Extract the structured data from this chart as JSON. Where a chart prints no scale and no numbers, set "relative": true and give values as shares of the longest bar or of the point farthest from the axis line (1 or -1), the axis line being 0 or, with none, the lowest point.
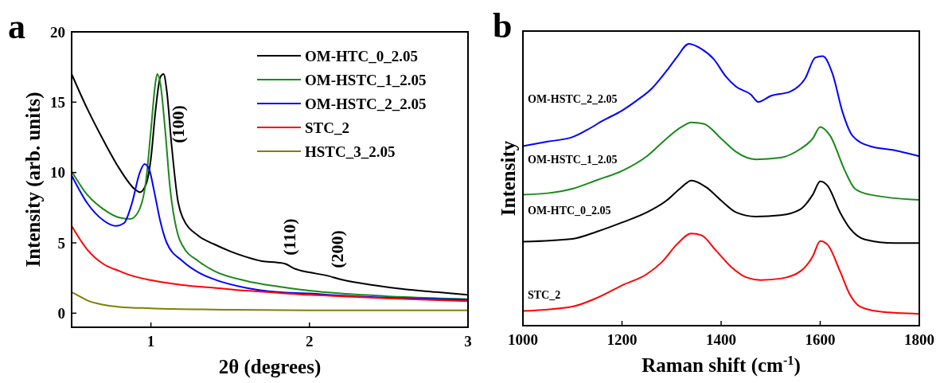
{
  "chart_data": [
    {
      "type": "line",
      "title": "a",
      "xlabel": "2θ (degrees)",
      "ylabel": "Intensity (arb. units)",
      "xlim": [
        0.5,
        3
      ],
      "xticks": [
        1,
        2,
        3
      ],
      "ylim": [
        -1,
        20
      ],
      "yticks": [
        0,
        5,
        10,
        15,
        20
      ],
      "legend": "top right",
      "grid": false,
      "annotations": [
        "(100)",
        "(110)",
        "(200)"
      ],
      "series": [
        {
          "name": "OM-HTC_0_2.05",
          "color": "#000000",
          "x": [
            0.5,
            0.6,
            0.7,
            0.8,
            0.9,
            0.93,
            0.97,
            1.0,
            1.03,
            1.06,
            1.08,
            1.1,
            1.13,
            1.17,
            1.2,
            1.3,
            1.4,
            1.5,
            1.6,
            1.7,
            1.8,
            1.85,
            1.9,
            2.0,
            2.1,
            2.2,
            2.4,
            2.6,
            2.8,
            3.0
          ],
          "values": [
            17,
            14.5,
            12.3,
            10.3,
            8.8,
            8.6,
            9.2,
            11,
            14.5,
            16.8,
            17,
            15.8,
            12,
            8,
            6.8,
            5.5,
            4.9,
            4.4,
            4.0,
            3.7,
            3.6,
            3.5,
            3.2,
            2.9,
            2.7,
            2.4,
            2.0,
            1.7,
            1.5,
            1.3
          ]
        },
        {
          "name": "OM-HSTC_1_2.05",
          "color": "#1a8a1a",
          "x": [
            0.5,
            0.6,
            0.7,
            0.8,
            0.87,
            0.92,
            0.97,
            1.0,
            1.03,
            1.04,
            1.06,
            1.09,
            1.12,
            1.17,
            1.2,
            1.3,
            1.4,
            1.6,
            1.8,
            2.0,
            2.2,
            2.5,
            3.0
          ],
          "values": [
            10.1,
            8.4,
            7.4,
            6.8,
            6.7,
            7.2,
            9.5,
            13,
            16.5,
            17,
            16.3,
            13,
            9,
            5.6,
            4.8,
            3.7,
            3.0,
            2.3,
            1.9,
            1.6,
            1.4,
            1.2,
            1.0
          ]
        },
        {
          "name": "OM-HSTC_2_2.05",
          "color": "#0000ff",
          "x": [
            0.5,
            0.6,
            0.7,
            0.78,
            0.83,
            0.88,
            0.93,
            0.96,
            0.99,
            1.02,
            1.06,
            1.1,
            1.2,
            1.3,
            1.4,
            1.6,
            1.8,
            2.0,
            2.2,
            2.5,
            3.0
          ],
          "values": [
            9.8,
            7.8,
            6.6,
            6.2,
            6.4,
            7.8,
            10,
            10.6,
            10.2,
            8.7,
            6.5,
            5.0,
            3.7,
            2.9,
            2.4,
            1.8,
            1.5,
            1.4,
            1.25,
            1.1,
            0.95
          ]
        },
        {
          "name": "STC_2",
          "color": "#ff0000",
          "x": [
            0.5,
            0.6,
            0.7,
            0.8,
            0.9,
            1.0,
            1.2,
            1.4,
            1.6,
            1.8,
            2.0,
            2.2,
            2.5,
            3.0
          ],
          "values": [
            6.2,
            4.5,
            3.5,
            3.0,
            2.6,
            2.35,
            2.0,
            1.8,
            1.6,
            1.45,
            1.3,
            1.2,
            1.05,
            0.85
          ]
        },
        {
          "name": "HSTC_3_2.05",
          "color": "#808000",
          "x": [
            0.5,
            0.55,
            0.6,
            0.7,
            0.8,
            1.0,
            1.5,
            2.0,
            3.0
          ],
          "values": [
            1.5,
            1.2,
            0.9,
            0.6,
            0.45,
            0.35,
            0.25,
            0.2,
            0.2
          ]
        }
      ]
    },
    {
      "type": "line",
      "title": "b",
      "xlabel": "Raman shift (cm$^{-1}$)",
      "ylabel": "Intensity",
      "relative": true,
      "xlim": [
        1000,
        1800
      ],
      "xticks": [
        1000,
        1200,
        1400,
        1600,
        1800
      ],
      "legend": false,
      "grid": false,
      "tick_labels": "x",
      "series": [
        {
          "name": "STC_2",
          "color": "#ff0000",
          "x": [
            1000,
            1100,
            1150,
            1200,
            1250,
            1280,
            1310,
            1340,
            1360,
            1390,
            1420,
            1450,
            1480,
            1520,
            1560,
            1585,
            1600,
            1615,
            1640,
            1660,
            1680,
            1720,
            1800
          ],
          "values": [
            0.052,
            0.068,
            0.099,
            0.143,
            0.183,
            0.225,
            0.287,
            0.327,
            0.321,
            0.266,
            0.209,
            0.172,
            0.162,
            0.167,
            0.193,
            0.246,
            0.3,
            0.287,
            0.193,
            0.11,
            0.068,
            0.05,
            0.042
          ]
        },
        {
          "name": "OM-HTC_0_2.05",
          "color": "#000000",
          "x": [
            1000,
            1100,
            1150,
            1200,
            1250,
            1290,
            1320,
            1340,
            1370,
            1400,
            1430,
            1470,
            1520,
            1560,
            1585,
            1600,
            1615,
            1640,
            1660,
            1690,
            1750,
            1800
          ],
          "values": [
            0.298,
            0.308,
            0.334,
            0.366,
            0.402,
            0.444,
            0.491,
            0.515,
            0.491,
            0.444,
            0.402,
            0.387,
            0.392,
            0.413,
            0.465,
            0.512,
            0.496,
            0.402,
            0.345,
            0.306,
            0.293,
            0.293
          ]
        },
        {
          "name": "OM-HSTC_1_2.05",
          "color": "#1a8a1a",
          "x": [
            1000,
            1050,
            1100,
            1150,
            1200,
            1250,
            1290,
            1320,
            1340,
            1365,
            1400,
            1430,
            1470,
            1520,
            1560,
            1585,
            1600,
            1620,
            1650,
            1670,
            1700,
            1800
          ],
          "values": [
            0.465,
            0.47,
            0.486,
            0.517,
            0.549,
            0.601,
            0.664,
            0.705,
            0.721,
            0.716,
            0.664,
            0.617,
            0.59,
            0.596,
            0.627,
            0.664,
            0.705,
            0.674,
            0.549,
            0.486,
            0.465,
            0.446
          ]
        },
        {
          "name": "OM-HSTC_2_2.05",
          "color": "#0000ff",
          "x": [
            1000,
            1050,
            1100,
            1130,
            1160,
            1200,
            1230,
            1260,
            1290,
            1310,
            1335,
            1360,
            1385,
            1410,
            1430,
            1460,
            1475,
            1500,
            1540,
            1570,
            1590,
            1605,
            1625,
            1645,
            1665,
            1700,
            1750,
            1800
          ],
          "values": [
            0.637,
            0.653,
            0.669,
            0.695,
            0.726,
            0.763,
            0.799,
            0.841,
            0.904,
            0.951,
            1.0,
            0.982,
            0.946,
            0.883,
            0.848,
            0.82,
            0.794,
            0.815,
            0.831,
            0.878,
            0.951,
            0.956,
            0.893,
            0.758,
            0.674,
            0.637,
            0.622,
            0.601
          ]
        }
      ]
    }
  ]
}
